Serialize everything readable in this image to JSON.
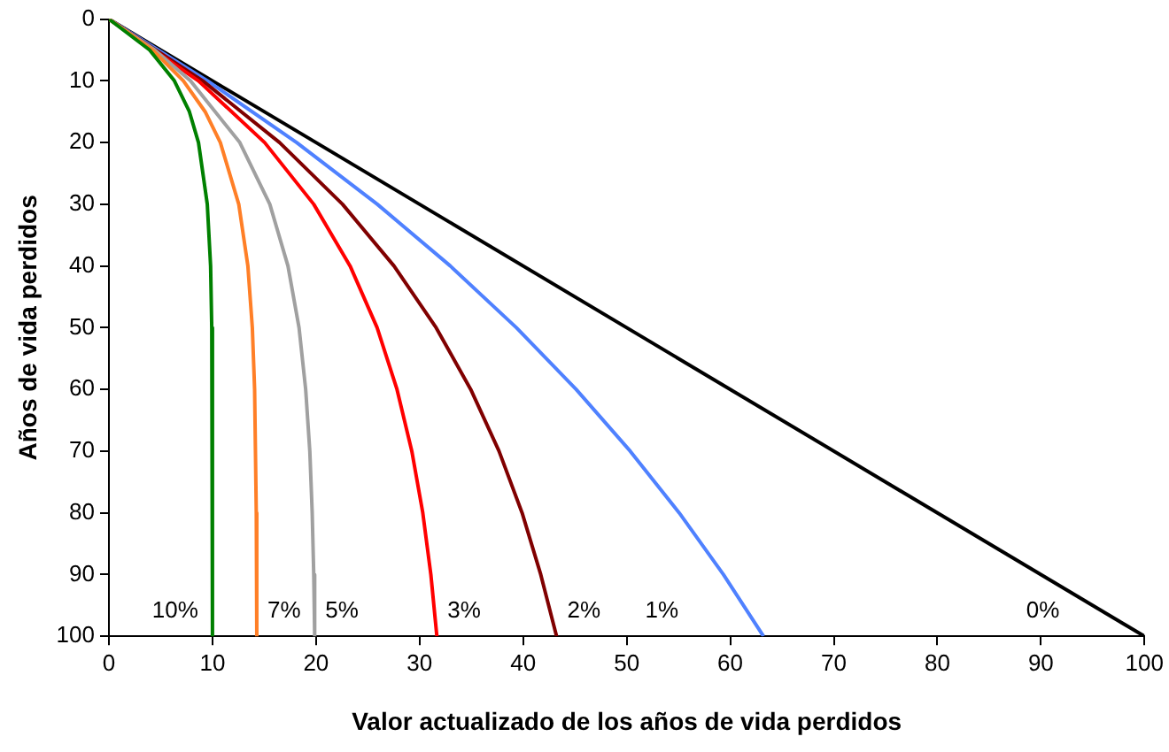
{
  "chart_data": {
    "type": "line",
    "xlabel": "Valor actualizado de los años de vida perdidos",
    "ylabel": "Años de vida perdidos",
    "xlim": [
      0,
      100
    ],
    "xticks": [
      0,
      10,
      20,
      30,
      40,
      50,
      60,
      70,
      80,
      90,
      100
    ],
    "ylim": [
      100,
      0
    ],
    "yticks": [
      0,
      10,
      20,
      30,
      40,
      50,
      60,
      70,
      80,
      90,
      100
    ],
    "grid": false,
    "legend": false,
    "marker": "none",
    "line_style": "solid",
    "series": [
      {
        "name": "10%",
        "color": "#008000",
        "x": [
          0,
          3.93,
          6.32,
          7.77,
          8.65,
          9.5,
          9.82,
          9.93,
          10
        ],
        "values": [
          0,
          5,
          10,
          15,
          20,
          30,
          40,
          50,
          100
        ]
      },
      {
        "name": "7%",
        "color": "#ff7f27",
        "x": [
          0,
          4.22,
          7.19,
          9.29,
          10.76,
          12.54,
          13.42,
          13.85,
          14.07,
          14.23,
          14.28
        ],
        "values": [
          0,
          5,
          10,
          15,
          20,
          30,
          40,
          50,
          60,
          80,
          100
        ]
      },
      {
        "name": "5%",
        "color": "#a0a0a0",
        "x": [
          0,
          4.42,
          7.87,
          12.64,
          15.54,
          17.29,
          18.36,
          19,
          19.4,
          19.63,
          19.78,
          19.87
        ],
        "values": [
          0,
          5,
          10,
          20,
          30,
          40,
          50,
          60,
          70,
          80,
          90,
          100
        ]
      },
      {
        "name": "3%",
        "color": "#ff0000",
        "x": [
          0,
          8.64,
          15.04,
          19.78,
          23.29,
          25.9,
          27.82,
          29.25,
          30.31,
          31.09,
          31.67
        ],
        "values": [
          0,
          10,
          20,
          30,
          40,
          50,
          60,
          70,
          80,
          90,
          100
        ]
      },
      {
        "name": "2%",
        "color": "#800000",
        "x": [
          0,
          9.06,
          16.48,
          22.56,
          27.53,
          31.6,
          34.94,
          37.67,
          39.9,
          41.7,
          43.23
        ],
        "values": [
          0,
          10,
          20,
          30,
          40,
          50,
          60,
          70,
          80,
          90,
          100
        ]
      },
      {
        "name": "1%",
        "color": "#4f81ff",
        "x": [
          0,
          9.52,
          18.13,
          25.92,
          32.97,
          39.35,
          45.12,
          50.34,
          55.07,
          59.34,
          63.21
        ],
        "values": [
          0,
          10,
          20,
          30,
          40,
          50,
          60,
          70,
          80,
          90,
          100
        ]
      },
      {
        "name": "0%",
        "color": "#000000",
        "x": [
          0,
          100
        ],
        "values": [
          0,
          100
        ]
      }
    ]
  }
}
